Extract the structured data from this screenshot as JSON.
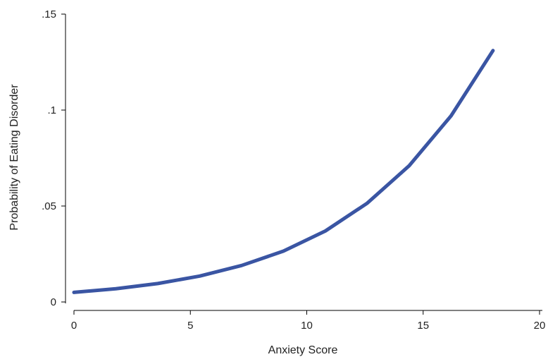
{
  "chart_data": {
    "type": "line",
    "title": "",
    "xlabel": "Anxiety Score",
    "ylabel": "Probability of Eating Disorder",
    "xlim": [
      0,
      20
    ],
    "ylim": [
      0,
      0.15
    ],
    "xticks": [
      {
        "value": 0,
        "label": "0"
      },
      {
        "value": 5,
        "label": "5"
      },
      {
        "value": 10,
        "label": "10"
      },
      {
        "value": 15,
        "label": "15"
      },
      {
        "value": 20,
        "label": "20"
      }
    ],
    "yticks": [
      {
        "value": 0,
        "label": "0"
      },
      {
        "value": 0.05,
        "label": ".05"
      },
      {
        "value": 0.1,
        "label": ".1"
      },
      {
        "value": 0.15,
        "label": ".15"
      }
    ],
    "grid": false,
    "legend": "none",
    "series": [
      {
        "color": "#3a55a3",
        "x": [
          0,
          1.8,
          3.6,
          5.4,
          7.2,
          9,
          10.8,
          12.6,
          14.4,
          16.2,
          18
        ],
        "y": [
          0.005,
          0.0069,
          0.0096,
          0.0135,
          0.019,
          0.0265,
          0.037,
          0.0515,
          0.071,
          0.097,
          0.131
        ]
      }
    ]
  }
}
